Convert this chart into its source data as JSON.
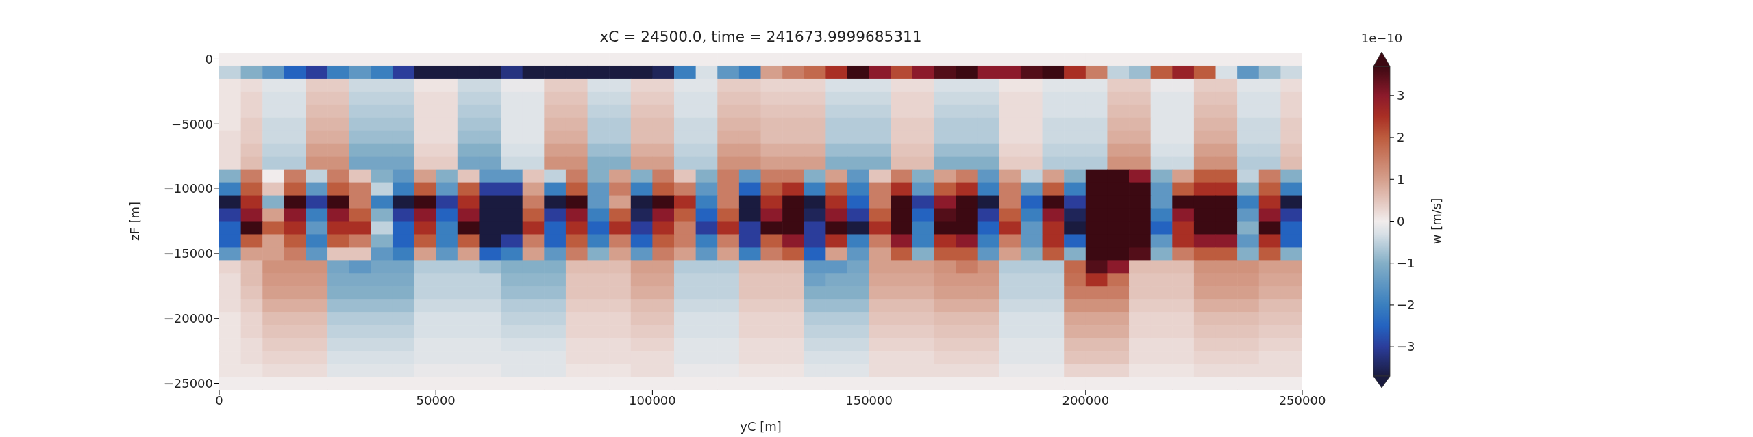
{
  "chart_data": {
    "type": "heatmap",
    "title": "xC = 24500.0, time = 241673.9999685311",
    "xlabel": "yC [m]",
    "ylabel": "zF [m]",
    "clabel": "w [m/s]",
    "annotations": [
      "1e−10"
    ],
    "x": [
      2500,
      7500,
      12500,
      17500,
      22500,
      27500,
      32500,
      37500,
      42500,
      47500,
      52500,
      57500,
      62500,
      67500,
      72500,
      77500,
      82500,
      87500,
      92500,
      97500,
      102500,
      107500,
      112500,
      117500,
      122500,
      127500,
      132500,
      137500,
      142500,
      147500,
      152500,
      157500,
      162500,
      167500,
      172500,
      177500,
      182500,
      187500,
      192500,
      197500,
      202500,
      207500,
      212500,
      217500,
      222500,
      227500,
      232500,
      237500,
      242500,
      247500
    ],
    "cells": [
      [
        0,
        0,
        0,
        0,
        0,
        0,
        0,
        0,
        0,
        0,
        0,
        0,
        0,
        0,
        0,
        0,
        0,
        0,
        0,
        0,
        0,
        0,
        0,
        0,
        0,
        0,
        0,
        0,
        0,
        0,
        0,
        0,
        0,
        0,
        0,
        0,
        0,
        0,
        0,
        0,
        0,
        0,
        0,
        0,
        0,
        0,
        0,
        0,
        0,
        0
      ],
      [
        -0.5,
        -1,
        -1.5,
        -2.5,
        -3,
        -2,
        -1.5,
        -2,
        -3,
        -3.7,
        -3.7,
        -3.7,
        -3.7,
        -3.2,
        -3.7,
        -3.7,
        -3.7,
        -3.7,
        -3.7,
        -3.7,
        -3.5,
        -2,
        -0.3,
        -1.5,
        -2,
        1,
        1.5,
        1.8,
        2.5,
        3.7,
        3,
        2.2,
        3,
        3.5,
        3.7,
        3,
        3,
        3.5,
        3.7,
        2.5,
        1.5,
        -0.5,
        -0.8,
        2,
        2.8,
        2,
        -0.3,
        -1.5,
        -0.8,
        -0.4
      ],
      [
        0.1,
        0.2,
        -0.2,
        -0.2,
        0.4,
        0.4,
        -0.4,
        -0.4,
        -0.4,
        0.1,
        0.1,
        -0.4,
        -0.4,
        -0.1,
        -0.1,
        0.4,
        0.4,
        -0.3,
        -0.3,
        0.3,
        0.3,
        -0.2,
        -0.2,
        0.4,
        0.4,
        0.3,
        0.3,
        0.3,
        -0.3,
        -0.3,
        -0.3,
        0.2,
        0.2,
        -0.3,
        -0.3,
        -0.3,
        0.1,
        0.1,
        -0.2,
        -0.2,
        -0.2,
        0.4,
        0.4,
        -0.1,
        -0.1,
        0.4,
        0.4,
        -0.2,
        -0.2,
        0.2
      ],
      [
        0.1,
        0.3,
        -0.3,
        -0.3,
        0.5,
        0.5,
        -0.5,
        -0.5,
        -0.5,
        0.2,
        0.2,
        -0.5,
        -0.5,
        -0.2,
        -0.2,
        0.5,
        0.5,
        -0.4,
        -0.4,
        0.4,
        0.4,
        -0.3,
        -0.3,
        0.5,
        0.5,
        0.4,
        0.4,
        0.4,
        -0.4,
        -0.4,
        -0.4,
        0.3,
        0.3,
        -0.4,
        -0.4,
        -0.4,
        0.2,
        0.2,
        -0.3,
        -0.3,
        -0.3,
        0.5,
        0.5,
        -0.2,
        -0.2,
        0.5,
        0.5,
        -0.3,
        -0.3,
        0.3
      ],
      [
        0.1,
        0.3,
        -0.3,
        -0.3,
        0.6,
        0.6,
        -0.6,
        -0.6,
        -0.6,
        0.2,
        0.2,
        -0.6,
        -0.6,
        -0.2,
        -0.2,
        0.6,
        0.6,
        -0.5,
        -0.5,
        0.5,
        0.5,
        -0.3,
        -0.3,
        0.6,
        0.6,
        0.5,
        0.5,
        0.5,
        -0.5,
        -0.5,
        -0.5,
        0.3,
        0.3,
        -0.5,
        -0.5,
        -0.5,
        0.2,
        0.2,
        -0.3,
        -0.3,
        -0.3,
        0.6,
        0.6,
        -0.2,
        -0.2,
        0.6,
        0.6,
        -0.3,
        -0.3,
        0.3
      ],
      [
        0.1,
        0.4,
        -0.4,
        -0.4,
        0.7,
        0.7,
        -0.7,
        -0.7,
        -0.7,
        0.2,
        0.2,
        -0.7,
        -0.7,
        -0.2,
        -0.2,
        0.7,
        0.7,
        -0.6,
        -0.6,
        0.6,
        0.6,
        -0.4,
        -0.4,
        0.7,
        0.7,
        0.6,
        0.6,
        0.6,
        -0.6,
        -0.6,
        -0.6,
        0.4,
        0.4,
        -0.6,
        -0.6,
        -0.6,
        0.2,
        0.2,
        -0.4,
        -0.4,
        -0.4,
        0.7,
        0.7,
        -0.2,
        -0.2,
        0.7,
        0.7,
        -0.4,
        -0.4,
        0.4
      ],
      [
        0.2,
        0.4,
        -0.4,
        -0.4,
        0.8,
        0.8,
        -0.8,
        -0.8,
        -0.8,
        0.2,
        0.2,
        -0.8,
        -0.8,
        -0.2,
        -0.2,
        0.8,
        0.8,
        -0.6,
        -0.6,
        0.6,
        0.6,
        -0.4,
        -0.4,
        0.8,
        0.8,
        0.6,
        0.6,
        0.6,
        -0.6,
        -0.6,
        -0.6,
        0.4,
        0.4,
        -0.6,
        -0.6,
        -0.6,
        0.2,
        0.2,
        -0.4,
        -0.4,
        -0.4,
        0.8,
        0.8,
        -0.2,
        -0.2,
        0.8,
        0.8,
        -0.4,
        -0.4,
        0.4
      ],
      [
        0.2,
        0.5,
        -0.5,
        -0.5,
        1,
        1,
        -1,
        -1,
        -1,
        0.3,
        0.3,
        -1,
        -1,
        -0.3,
        -0.3,
        1,
        1,
        -0.8,
        -0.8,
        0.8,
        0.8,
        -0.5,
        -0.5,
        1,
        1,
        0.8,
        0.8,
        0.8,
        -0.8,
        -0.8,
        -0.8,
        0.5,
        0.5,
        -0.8,
        -0.8,
        -0.8,
        0.3,
        0.3,
        -0.5,
        -0.5,
        -0.5,
        1,
        1,
        -0.3,
        -0.3,
        1,
        1,
        -0.5,
        -0.5,
        0.5
      ],
      [
        0.2,
        0.6,
        -0.6,
        -0.6,
        1.2,
        1.2,
        -1.2,
        -1.2,
        -1.2,
        0.4,
        0.4,
        -1.2,
        -1.2,
        -0.4,
        -0.4,
        1.2,
        1.2,
        -1,
        -1,
        1,
        1,
        -0.6,
        -0.6,
        1.2,
        1.2,
        1,
        1,
        1,
        -1,
        -1,
        -1,
        0.6,
        0.6,
        -1,
        -1,
        -1,
        0.4,
        0.4,
        -0.6,
        -0.6,
        -0.6,
        1.2,
        1.2,
        -0.4,
        -0.4,
        1.2,
        1.2,
        -0.6,
        -0.6,
        0.6
      ],
      [
        -1,
        1.5,
        0,
        1.5,
        -0.5,
        1.5,
        0.5,
        -1,
        -1.5,
        1,
        -1,
        0.5,
        -1.5,
        -1.5,
        0.5,
        -0.5,
        1.5,
        -1,
        1,
        -1,
        1.5,
        0.5,
        -1,
        1.5,
        -1.5,
        1.5,
        1.5,
        -1,
        1,
        -1.5,
        0.5,
        1.5,
        -1,
        1,
        1.5,
        -1.5,
        1,
        -0.5,
        1,
        -1,
        3.7,
        3.7,
        3,
        -1,
        1,
        2,
        2,
        -0.5,
        1.5,
        -1
      ],
      [
        -2,
        2,
        0.5,
        2,
        -1.5,
        2,
        1.5,
        -0.5,
        -2,
        2,
        -1.5,
        2,
        -3,
        -3,
        1,
        -2,
        2,
        -1.5,
        1.5,
        -2,
        2,
        1.5,
        -1.5,
        1.5,
        -2.5,
        2,
        2.5,
        -2,
        2,
        -2,
        1.5,
        2.5,
        -1.5,
        2,
        2.5,
        -2,
        1.5,
        -1.5,
        2,
        -2,
        3.7,
        3.7,
        3.7,
        -1.5,
        2,
        2.5,
        2.5,
        -1,
        2,
        -2
      ],
      [
        -3.7,
        2.5,
        -1,
        3.7,
        -3,
        3.7,
        1.5,
        -2,
        -3.7,
        3.7,
        -3,
        2.5,
        -3.7,
        -3.7,
        1.5,
        -3.7,
        3.7,
        -1.5,
        1,
        -3.7,
        3.7,
        2.5,
        -2,
        1.5,
        -3.7,
        2.5,
        3.7,
        -3.7,
        2.5,
        -2.5,
        1.5,
        3.7,
        -3,
        3,
        3.7,
        -3.7,
        1.5,
        -2.5,
        3.7,
        -3,
        3.7,
        3.7,
        3.7,
        -1.5,
        3.7,
        3.7,
        3.7,
        -2,
        2.5,
        -3.7
      ],
      [
        -3,
        3,
        1,
        3,
        -2,
        3,
        2,
        -1,
        -3,
        3,
        -2.5,
        3,
        -3.7,
        -3.7,
        2,
        -3,
        3,
        -2,
        2,
        -3.5,
        3,
        2,
        -2.5,
        2,
        -3.7,
        3,
        3.7,
        -3.5,
        3,
        -3,
        2,
        3.7,
        -2.5,
        3.5,
        3.7,
        -3,
        2,
        -2,
        3,
        -3.5,
        3.7,
        3.7,
        3.7,
        -2,
        3,
        3.7,
        3.7,
        -1.5,
        3,
        -3
      ],
      [
        -2.5,
        3.7,
        2,
        2.5,
        -1.5,
        2.5,
        2.5,
        -0.5,
        -2.5,
        2.5,
        -2,
        3.7,
        -3.7,
        -3.7,
        2.5,
        -2.5,
        2.5,
        -2.5,
        2.5,
        -3,
        2.5,
        1.5,
        -3,
        2.5,
        -3,
        3.7,
        3.7,
        -3,
        3.7,
        -3.7,
        2.5,
        3.7,
        -2,
        3.7,
        3.7,
        -2.5,
        2.5,
        -1.5,
        2.5,
        -3.7,
        3.7,
        3.7,
        3.7,
        -2.5,
        2.5,
        3.7,
        3.7,
        -1,
        3.7,
        -2.5
      ],
      [
        -2.5,
        2,
        1,
        2,
        -2,
        2,
        1.5,
        -1,
        -2.5,
        2,
        -2,
        2,
        -3.7,
        -3,
        1.5,
        -2.5,
        2,
        -2,
        1.5,
        -2.5,
        2,
        1.5,
        -2,
        1.5,
        -3,
        2,
        3,
        -3,
        2.5,
        -2,
        1.5,
        3,
        -2,
        2.5,
        3,
        -2,
        1.5,
        -1.5,
        2.5,
        -2.5,
        3.7,
        3.7,
        3.7,
        -1.5,
        2.5,
        3,
        3,
        -1.5,
        2.5,
        -2.5
      ],
      [
        -1.5,
        1,
        1,
        1.5,
        -1.5,
        0.5,
        0.5,
        -1.5,
        -2,
        1,
        -1.5,
        1,
        -2.5,
        -2,
        1,
        -1.5,
        1.5,
        -1,
        1,
        -1.5,
        1.5,
        1,
        -1.5,
        1,
        -2,
        1.5,
        2,
        -2.5,
        1,
        -1.5,
        1,
        2,
        -1,
        2,
        2,
        -1.5,
        1,
        -1,
        2,
        -1,
        3.7,
        3.7,
        3.5,
        -1,
        1.5,
        2,
        2,
        -1,
        2,
        -1
      ],
      [
        0.3,
        0.6,
        1.2,
        1.2,
        1.2,
        -1.2,
        -1.5,
        -1.2,
        -1.2,
        -0.6,
        -0.6,
        -0.6,
        -0.8,
        -1,
        -1,
        -1,
        0.6,
        0.6,
        0.6,
        1,
        1,
        -0.6,
        -0.6,
        -0.6,
        0.6,
        0.6,
        0.6,
        -1.5,
        -1.5,
        -1.2,
        1,
        1,
        1,
        1.2,
        1.5,
        1.2,
        -0.6,
        -0.6,
        -0.6,
        1.8,
        3.5,
        3,
        0.6,
        0.6,
        0.6,
        1.2,
        1.2,
        1.2,
        1,
        1
      ],
      [
        0.2,
        0.6,
        1.1,
        1.1,
        1.1,
        -1.1,
        -1.1,
        -1.1,
        -1.1,
        -0.5,
        -0.5,
        -0.5,
        -0.5,
        -0.9,
        -0.9,
        -0.9,
        0.5,
        0.5,
        0.5,
        0.9,
        0.9,
        -0.5,
        -0.5,
        -0.5,
        0.5,
        0.5,
        0.5,
        -1.3,
        -1.1,
        -1.1,
        0.9,
        0.9,
        0.9,
        1.1,
        1.1,
        1.1,
        -0.5,
        -0.5,
        -0.5,
        1.7,
        2.5,
        1.7,
        0.5,
        0.5,
        0.5,
        1.1,
        1.1,
        1.1,
        0.9,
        0.9
      ],
      [
        0.2,
        0.5,
        1,
        1,
        1,
        -1,
        -1,
        -1,
        -1,
        -0.5,
        -0.5,
        -0.5,
        -0.5,
        -0.8,
        -0.8,
        -0.8,
        0.5,
        0.5,
        0.5,
        0.8,
        0.8,
        -0.5,
        -0.5,
        -0.5,
        0.5,
        0.5,
        0.5,
        -1,
        -1,
        -1,
        0.8,
        0.8,
        0.8,
        1,
        1,
        1,
        -0.5,
        -0.5,
        -0.5,
        1.5,
        1.5,
        1.5,
        0.5,
        0.5,
        0.5,
        1,
        1,
        1,
        0.8,
        0.8
      ],
      [
        0.2,
        0.4,
        0.8,
        0.8,
        0.8,
        -0.8,
        -0.8,
        -0.8,
        -0.8,
        -0.4,
        -0.4,
        -0.4,
        -0.4,
        -0.6,
        -0.6,
        -0.6,
        0.4,
        0.4,
        0.4,
        0.6,
        0.6,
        -0.4,
        -0.4,
        -0.4,
        0.4,
        0.4,
        0.4,
        -0.8,
        -0.8,
        -0.8,
        0.6,
        0.6,
        0.6,
        0.8,
        0.8,
        0.8,
        -0.4,
        -0.4,
        -0.4,
        1.2,
        1.2,
        1.2,
        0.4,
        0.4,
        0.4,
        0.8,
        0.8,
        0.8,
        0.6,
        0.6
      ],
      [
        0.1,
        0.3,
        0.6,
        0.6,
        0.6,
        -0.6,
        -0.6,
        -0.6,
        -0.6,
        -0.3,
        -0.3,
        -0.3,
        -0.3,
        -0.5,
        -0.5,
        -0.5,
        0.3,
        0.3,
        0.3,
        0.5,
        0.5,
        -0.3,
        -0.3,
        -0.3,
        0.3,
        0.3,
        0.3,
        -0.6,
        -0.6,
        -0.6,
        0.5,
        0.5,
        0.5,
        0.6,
        0.6,
        0.6,
        -0.3,
        -0.3,
        -0.3,
        0.9,
        0.9,
        0.9,
        0.3,
        0.3,
        0.3,
        0.6,
        0.6,
        0.6,
        0.5,
        0.5
      ],
      [
        0.1,
        0.3,
        0.5,
        0.5,
        0.5,
        -0.5,
        -0.5,
        -0.5,
        -0.5,
        -0.3,
        -0.3,
        -0.3,
        -0.3,
        -0.4,
        -0.4,
        -0.4,
        0.3,
        0.3,
        0.3,
        0.4,
        0.4,
        -0.3,
        -0.3,
        -0.3,
        0.3,
        0.3,
        0.3,
        -0.5,
        -0.5,
        -0.5,
        0.4,
        0.4,
        0.4,
        0.5,
        0.5,
        0.5,
        -0.3,
        -0.3,
        -0.3,
        0.8,
        0.8,
        0.8,
        0.3,
        0.3,
        0.3,
        0.5,
        0.5,
        0.5,
        0.4,
        0.4
      ],
      [
        0.1,
        0.2,
        0.4,
        0.4,
        0.4,
        -0.4,
        -0.4,
        -0.4,
        -0.4,
        -0.2,
        -0.2,
        -0.2,
        -0.2,
        -0.3,
        -0.3,
        -0.3,
        0.2,
        0.2,
        0.2,
        0.3,
        0.3,
        -0.2,
        -0.2,
        -0.2,
        0.2,
        0.2,
        0.2,
        -0.4,
        -0.4,
        -0.4,
        0.3,
        0.3,
        0.3,
        0.4,
        0.4,
        0.4,
        -0.2,
        -0.2,
        -0.2,
        0.6,
        0.6,
        0.6,
        0.2,
        0.2,
        0.2,
        0.4,
        0.4,
        0.4,
        0.3,
        0.3
      ],
      [
        0.1,
        0.2,
        0.3,
        0.3,
        0.3,
        -0.3,
        -0.3,
        -0.3,
        -0.3,
        -0.2,
        -0.2,
        -0.2,
        -0.2,
        -0.2,
        -0.2,
        -0.2,
        0.2,
        0.2,
        0.2,
        0.2,
        0.2,
        -0.2,
        -0.2,
        -0.2,
        0.2,
        0.2,
        0.2,
        -0.3,
        -0.3,
        -0.3,
        0.2,
        0.2,
        0.2,
        0.3,
        0.3,
        0.3,
        -0.2,
        -0.2,
        -0.2,
        0.5,
        0.5,
        0.5,
        0.2,
        0.2,
        0.2,
        0.3,
        0.3,
        0.3,
        0.2,
        0.2
      ],
      [
        0.1,
        0.1,
        0.2,
        0.2,
        0.2,
        -0.2,
        -0.2,
        -0.2,
        -0.2,
        -0.1,
        -0.1,
        -0.1,
        -0.1,
        -0.2,
        -0.2,
        -0.2,
        0.1,
        0.1,
        0.1,
        0.2,
        0.2,
        -0.1,
        -0.1,
        -0.1,
        0.1,
        0.1,
        0.1,
        -0.2,
        -0.2,
        -0.2,
        0.2,
        0.2,
        0.2,
        0.2,
        0.2,
        0.2,
        -0.1,
        -0.1,
        -0.1,
        0.3,
        0.3,
        0.3,
        0.1,
        0.1,
        0.1,
        0.2,
        0.2,
        0.2,
        0.2,
        0.2
      ],
      [
        0,
        0,
        0,
        0,
        0,
        0,
        0,
        0,
        0,
        0,
        0,
        0,
        0,
        0,
        0,
        0,
        0,
        0,
        0,
        0,
        0,
        0,
        0,
        0,
        0,
        0,
        0,
        0,
        0,
        0,
        0,
        0,
        0,
        0,
        0,
        0,
        0,
        0,
        0,
        0,
        0,
        0,
        0,
        0,
        0,
        0,
        0,
        0,
        0,
        0
      ]
    ],
    "xlim": [
      0,
      250000
    ],
    "xticks": [
      0,
      50000,
      100000,
      150000,
      200000,
      250000
    ],
    "ylim": [
      -25500,
      500
    ],
    "yticks": [
      0,
      -5000,
      -10000,
      -15000,
      -20000,
      -25000
    ],
    "clim": [
      -3.7,
      3.7
    ],
    "cticks": [
      -3,
      -2,
      -1,
      0,
      1,
      2,
      3
    ]
  }
}
